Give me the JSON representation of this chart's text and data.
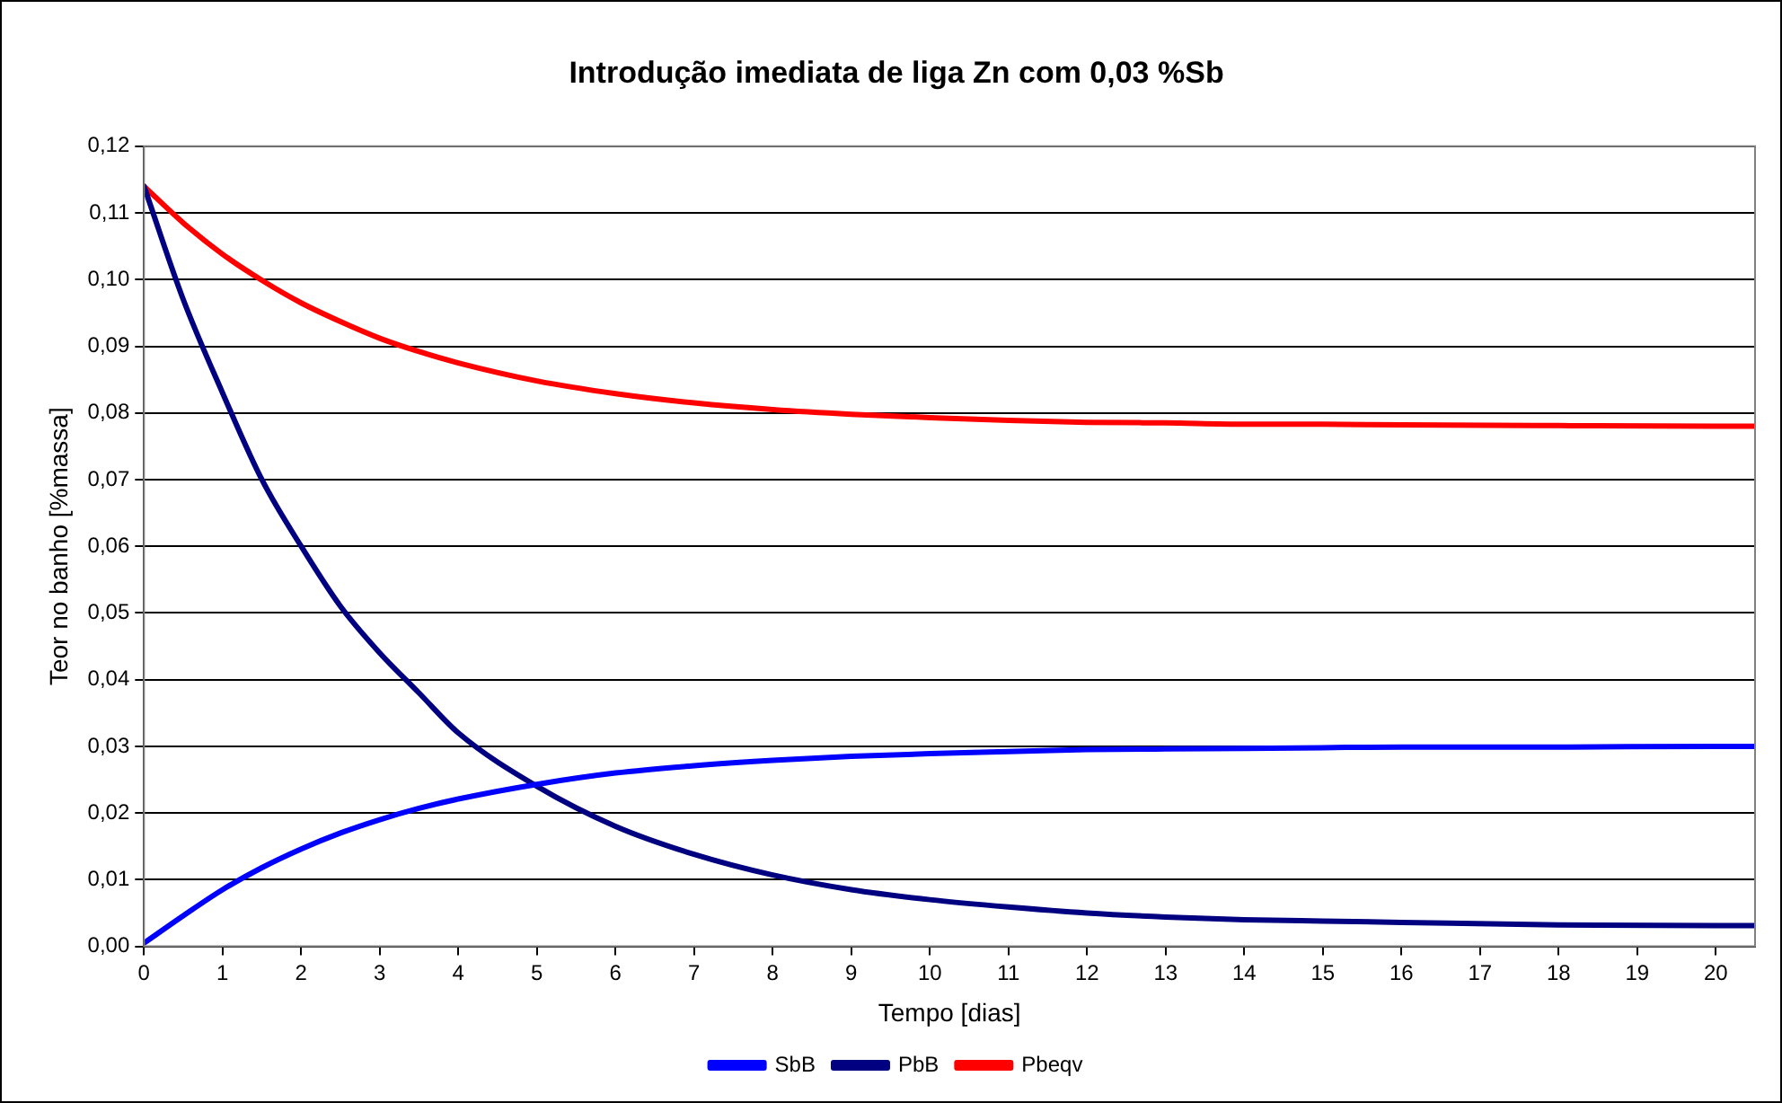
{
  "chart_data": {
    "type": "line",
    "title": "Introdução imediata de liga Zn com 0,03 %Sb",
    "xlabel": "Tempo [dias]",
    "ylabel": "Teor no banho [%massa]",
    "x": [
      0,
      0.5,
      1,
      1.5,
      2,
      2.5,
      3,
      3.5,
      4,
      5,
      6,
      7,
      8,
      9,
      10,
      11,
      12,
      13,
      14,
      15,
      16,
      18,
      20,
      20.5
    ],
    "series": [
      {
        "name": "SbB",
        "color": "#0000ff",
        "values": [
          0.0005,
          0.0046,
          0.0085,
          0.0118,
          0.0146,
          0.017,
          0.019,
          0.0207,
          0.0221,
          0.0243,
          0.026,
          0.0271,
          0.0279,
          0.0285,
          0.0289,
          0.0292,
          0.0295,
          0.0296,
          0.0297,
          0.0298,
          0.0299,
          0.0299,
          0.03,
          0.03
        ]
      },
      {
        "name": "PbB",
        "color": "#000080",
        "values": [
          0.114,
          0.097,
          0.083,
          0.07,
          0.06,
          0.051,
          0.044,
          0.038,
          0.032,
          0.024,
          0.018,
          0.0138,
          0.0107,
          0.0085,
          0.007,
          0.0059,
          0.005,
          0.0044,
          0.004,
          0.0038,
          0.0036,
          0.0032,
          0.0031,
          0.0031
        ]
      },
      {
        "name": "Pbeqv",
        "color": "#ff0000",
        "values": [
          0.114,
          0.1085,
          0.1038,
          0.0999,
          0.0965,
          0.0937,
          0.0912,
          0.0892,
          0.0875,
          0.0848,
          0.0829,
          0.0815,
          0.0805,
          0.0798,
          0.0793,
          0.0789,
          0.0786,
          0.0785,
          0.0783,
          0.0783,
          0.0782,
          0.0781,
          0.078,
          0.078
        ]
      }
    ],
    "xlim": [
      0,
      20.5
    ],
    "xticks": [
      0,
      1,
      2,
      3,
      4,
      5,
      6,
      7,
      8,
      9,
      10,
      11,
      12,
      13,
      14,
      15,
      16,
      17,
      18,
      19,
      20
    ],
    "ylim": [
      0,
      0.12
    ],
    "yticks": [
      {
        "value": 0,
        "label": "0,00"
      },
      {
        "value": 0.01,
        "label": "0,01"
      },
      {
        "value": 0.02,
        "label": "0,02"
      },
      {
        "value": 0.03,
        "label": "0,03"
      },
      {
        "value": 0.04,
        "label": "0,04"
      },
      {
        "value": 0.05,
        "label": "0,05"
      },
      {
        "value": 0.06,
        "label": "0,06"
      },
      {
        "value": 0.07,
        "label": "0,07"
      },
      {
        "value": 0.08,
        "label": "0,08"
      },
      {
        "value": 0.09,
        "label": "0,09"
      },
      {
        "value": 0.1,
        "label": "0,10"
      },
      {
        "value": 0.11,
        "label": "0,11"
      },
      {
        "value": 0.12,
        "label": "0,12"
      }
    ],
    "grid": "y",
    "legend": "bottom",
    "marker": "none",
    "line_style": "solid"
  }
}
